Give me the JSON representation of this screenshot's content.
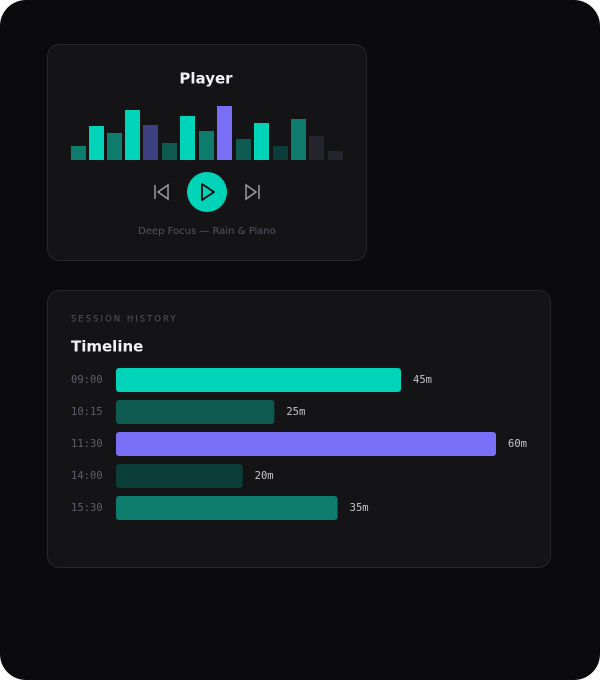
{
  "player": {
    "title": "Player",
    "track": "Deep Focus — Rain & Piano"
  },
  "history": {
    "label": "SESSION HISTORY",
    "title": "Timeline",
    "rows": [
      {
        "time": "09:00",
        "minutes": 45,
        "label": "45m",
        "color": "#00d4b8"
      },
      {
        "time": "10:15",
        "minutes": 25,
        "label": "25m",
        "color": "#0e5a50"
      },
      {
        "time": "11:30",
        "minutes": 60,
        "label": "60m",
        "color": "#7b6ef6"
      },
      {
        "time": "14:00",
        "minutes": 20,
        "label": "20m",
        "color": "#0b3e38"
      },
      {
        "time": "15:30",
        "minutes": 35,
        "label": "35m",
        "color": "#0c7c6c"
      }
    ]
  }
}
